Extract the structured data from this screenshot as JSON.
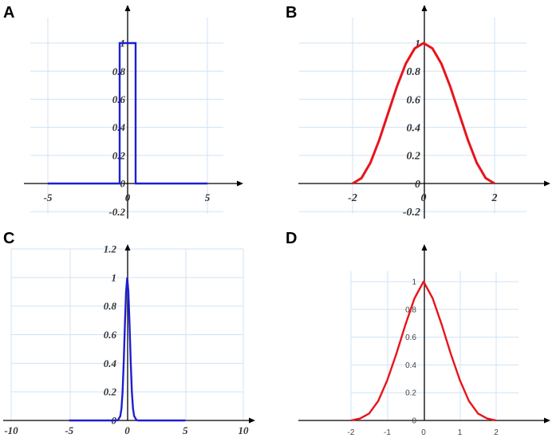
{
  "chart_data": [
    {
      "panel": "A",
      "type": "line",
      "x_ticks": [
        -5,
        0,
        5
      ],
      "x_tick_labels": [
        "-5",
        "0",
        "5"
      ],
      "y_ticks": [
        -0.2,
        0,
        0.2,
        0.4,
        0.6,
        0.8,
        1
      ],
      "y_tick_labels": [
        "-0.2",
        "0",
        "0.2",
        "0.4",
        "0.6",
        "0.8",
        "1"
      ],
      "xlim": [
        -6.3,
        7.0
      ],
      "ylim": [
        -0.2,
        1.25
      ],
      "grid": true,
      "series": [
        {
          "color": "#1f1fd1",
          "x": [
            -5,
            -0.5,
            -0.5,
            0.5,
            0.5,
            5
          ],
          "y": [
            0,
            0,
            1,
            1,
            0,
            0
          ]
        }
      ]
    },
    {
      "panel": "B",
      "type": "line",
      "x_ticks": [
        -2,
        0,
        2
      ],
      "x_tick_labels": [
        "-2",
        "0",
        "2"
      ],
      "y_ticks": [
        -0.2,
        0,
        0.2,
        0.4,
        0.6,
        0.8,
        1
      ],
      "y_tick_labels": [
        "-0.2",
        "0",
        "0.2",
        "0.4",
        "0.6",
        "0.8",
        "1"
      ],
      "xlim": [
        -3.5,
        3.0
      ],
      "ylim": [
        -0.2,
        1.15
      ],
      "grid": true,
      "series": [
        {
          "color": "#e8141b",
          "x": [
            -2,
            -1.75,
            -1.5,
            -1.25,
            -1,
            -0.75,
            -0.5,
            -0.25,
            0,
            0.25,
            0.5,
            0.75,
            1,
            1.25,
            1.5,
            1.75,
            2
          ],
          "y": [
            0,
            0.038,
            0.146,
            0.309,
            0.5,
            0.691,
            0.854,
            0.962,
            1,
            0.962,
            0.854,
            0.691,
            0.5,
            0.309,
            0.146,
            0.038,
            0
          ]
        }
      ]
    },
    {
      "panel": "C",
      "type": "line",
      "x_ticks": [
        -10,
        -5,
        0,
        5,
        10
      ],
      "x_tick_labels": [
        "-10",
        "-5",
        "0",
        "5",
        "10"
      ],
      "y_ticks": [
        0,
        0.2,
        0.4,
        0.6,
        0.8,
        1,
        1.2
      ],
      "y_tick_labels": [
        "0",
        "0.2",
        "0.4",
        "0.6",
        "0.8",
        "1",
        "1.2"
      ],
      "xlim": [
        -10,
        10
      ],
      "ylim": [
        0,
        1.2
      ],
      "grid": true,
      "series": [
        {
          "color": "#1f1fd1",
          "x": [
            -5,
            -1,
            -0.8,
            -0.6,
            -0.5,
            -0.4,
            -0.3,
            -0.2,
            -0.1,
            0,
            0.1,
            0.2,
            0.3,
            0.4,
            0.5,
            0.6,
            0.8,
            1,
            5
          ],
          "y": [
            0,
            0,
            0.002,
            0.03,
            0.08,
            0.2,
            0.41,
            0.67,
            0.9,
            1,
            0.9,
            0.67,
            0.41,
            0.2,
            0.08,
            0.03,
            0.002,
            0,
            0
          ]
        }
      ]
    },
    {
      "panel": "D",
      "type": "line",
      "x_ticks": [
        -2,
        -1,
        0,
        1,
        2
      ],
      "x_tick_labels": [
        "-2",
        "-1",
        "0",
        "1",
        "2"
      ],
      "y_ticks": [
        0,
        0.2,
        0.4,
        0.6,
        0.8,
        1
      ],
      "y_tick_labels": [
        "0",
        "0.2",
        "0.4",
        "0.6",
        "0.8",
        "1"
      ],
      "xlim": [
        -2.2,
        2.5
      ],
      "ylim": [
        0,
        1.2
      ],
      "grid": true,
      "series": [
        {
          "color": "#e8141b",
          "x": [
            -2,
            -1.75,
            -1.5,
            -1.25,
            -1,
            -0.75,
            -0.5,
            -0.25,
            0,
            0.25,
            0.5,
            0.75,
            1,
            1.25,
            1.5,
            1.75,
            2
          ],
          "y": [
            0,
            0.014,
            0.05,
            0.14,
            0.29,
            0.48,
            0.69,
            0.88,
            1,
            0.88,
            0.69,
            0.48,
            0.29,
            0.14,
            0.05,
            0.014,
            0
          ]
        }
      ]
    }
  ]
}
